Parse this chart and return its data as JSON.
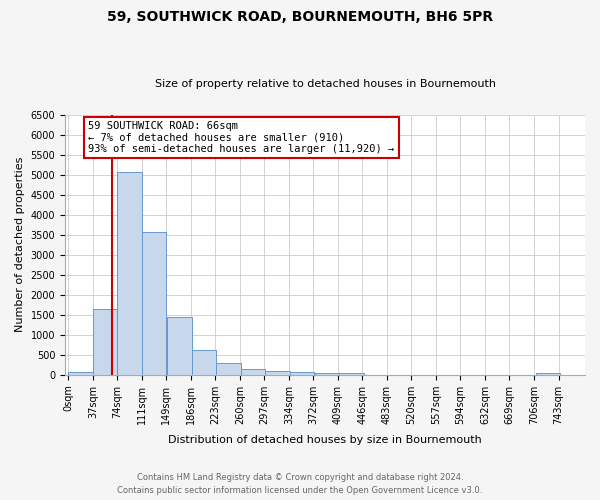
{
  "title": "59, SOUTHWICK ROAD, BOURNEMOUTH, BH6 5PR",
  "subtitle": "Size of property relative to detached houses in Bournemouth",
  "xlabel": "Distribution of detached houses by size in Bournemouth",
  "ylabel": "Number of detached properties",
  "footnote1": "Contains HM Land Registry data © Crown copyright and database right 2024.",
  "footnote2": "Contains public sector information licensed under the Open Government Licence v3.0.",
  "bar_left_edges": [
    0,
    37,
    74,
    111,
    149,
    186,
    223,
    260,
    297,
    334,
    372,
    409,
    446,
    483,
    520,
    557,
    594,
    632,
    669,
    706
  ],
  "bar_heights": [
    70,
    1630,
    5070,
    3580,
    1430,
    610,
    300,
    150,
    100,
    60,
    40,
    30,
    0,
    0,
    0,
    0,
    0,
    0,
    0,
    50
  ],
  "bin_width": 37,
  "bar_color": "#c8d8ec",
  "bar_edge_color": "#6699cc",
  "property_size": 66,
  "red_line_x": 66,
  "vline_color": "#cc0000",
  "annotation_text": "59 SOUTHWICK ROAD: 66sqm\n← 7% of detached houses are smaller (910)\n93% of semi-detached houses are larger (11,920) →",
  "annotation_box_facecolor": "#ffffff",
  "annotation_box_edgecolor": "#cc0000",
  "ylim": [
    0,
    6500
  ],
  "yticks": [
    0,
    500,
    1000,
    1500,
    2000,
    2500,
    3000,
    3500,
    4000,
    4500,
    5000,
    5500,
    6000,
    6500
  ],
  "xtick_labels": [
    "0sqm",
    "37sqm",
    "74sqm",
    "111sqm",
    "149sqm",
    "186sqm",
    "223sqm",
    "260sqm",
    "297sqm",
    "334sqm",
    "372sqm",
    "409sqm",
    "446sqm",
    "483sqm",
    "520sqm",
    "557sqm",
    "594sqm",
    "632sqm",
    "669sqm",
    "706sqm",
    "743sqm"
  ],
  "background_color": "#f5f5f5",
  "plot_bg_color": "#ffffff",
  "grid_color": "#cccccc",
  "title_fontsize": 10,
  "subtitle_fontsize": 8,
  "xlabel_fontsize": 8,
  "ylabel_fontsize": 8,
  "tick_fontsize": 7,
  "footnote_fontsize": 6
}
